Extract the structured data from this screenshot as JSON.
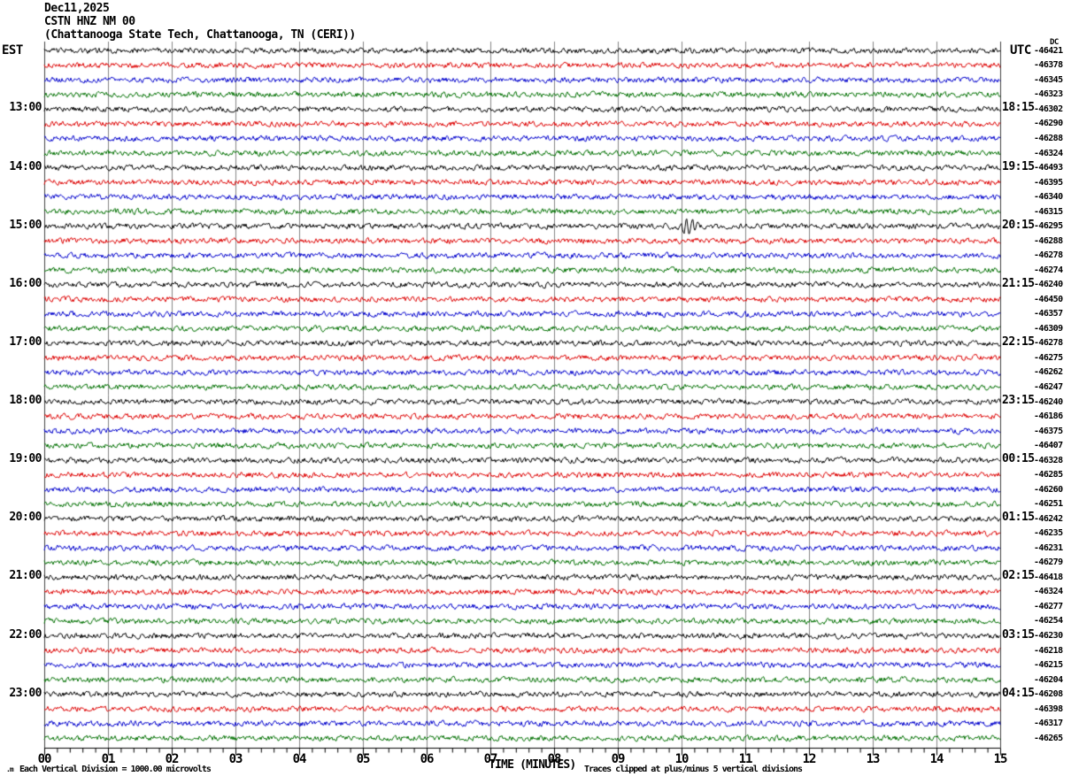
{
  "header": {
    "date": "Dec11,2025",
    "station": "CSTN HNZ NM 00",
    "location": "(Chattanooga State Tech, Chattanooga, TN (CERI))"
  },
  "timezones": {
    "left": "EST",
    "right": "UTC"
  },
  "dc_label": "DC",
  "footer": {
    "corner_glyph": ".m"
  },
  "chart_data": {
    "type": "line",
    "variant": "helicorder-seismogram",
    "title": "CSTN HNZ NM 00 (Chattanooga State Tech, Chattanooga, TN (CERI))",
    "xlabel": "TIME (MINUTES)",
    "x_ticks": [
      "00",
      "01",
      "02",
      "03",
      "04",
      "05",
      "06",
      "07",
      "08",
      "09",
      "10",
      "11",
      "12",
      "13",
      "14",
      "15"
    ],
    "x_range_minutes": [
      0,
      15
    ],
    "minor_ticks_per_minute": 5,
    "num_traces": 48,
    "trace_color_cycle": [
      "#000000",
      "#dd0000",
      "#0000cc",
      "#007000"
    ],
    "grid_color": "#858585",
    "hour_marks": [
      {
        "row": 4,
        "est": "13:00",
        "utc": "18:15"
      },
      {
        "row": 8,
        "est": "14:00",
        "utc": "19:15"
      },
      {
        "row": 12,
        "est": "15:00",
        "utc": "20:15"
      },
      {
        "row": 16,
        "est": "16:00",
        "utc": "21:15"
      },
      {
        "row": 20,
        "est": "17:00",
        "utc": "22:15"
      },
      {
        "row": 24,
        "est": "18:00",
        "utc": "23:15"
      },
      {
        "row": 28,
        "est": "19:00",
        "utc": "00:15"
      },
      {
        "row": 32,
        "est": "20:00",
        "utc": "01:15"
      },
      {
        "row": 36,
        "est": "21:00",
        "utc": "02:15"
      },
      {
        "row": 40,
        "est": "22:00",
        "utc": "03:15"
      },
      {
        "row": 44,
        "est": "23:00",
        "utc": "04:15"
      }
    ],
    "dc_offsets": [
      -46421,
      -46378,
      -46345,
      -46323,
      -46302,
      -46290,
      -46288,
      -46324,
      -46493,
      -46395,
      -46340,
      -46315,
      -46295,
      -46288,
      -46278,
      -46274,
      -46240,
      -46450,
      -46357,
      -46309,
      -46278,
      -46275,
      -46262,
      -46247,
      -46240,
      -46186,
      -46375,
      -46407,
      -46328,
      -46285,
      -46260,
      -46251,
      -46242,
      -46235,
      -46231,
      -46279,
      -46418,
      -46324,
      -46277,
      -46254,
      -46230,
      -46218,
      -46215,
      -46204,
      -46208,
      -46398,
      -46317,
      -46265
    ],
    "event": {
      "row": 12,
      "minute": 10.1,
      "description": "impulsive spike burst on the 15:00 EST / 20:15 UTC trace near minute 10"
    },
    "note_scale": "Each Vertical Division = 1000.00 microvolts",
    "note_clip": "Traces clipped at plus/minus 5 vertical divisions"
  }
}
